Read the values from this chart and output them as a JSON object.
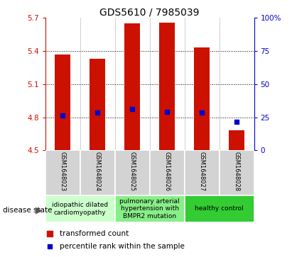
{
  "title": "GDS5610 / 7985039",
  "samples": [
    "GSM1648023",
    "GSM1648024",
    "GSM1648025",
    "GSM1648026",
    "GSM1648027",
    "GSM1648028"
  ],
  "bar_tops": [
    5.37,
    5.33,
    5.65,
    5.66,
    5.43,
    4.68
  ],
  "bar_bottom": 4.5,
  "blue_marker_y": [
    4.82,
    4.84,
    4.875,
    4.85,
    4.84,
    4.76
  ],
  "ylim_left": [
    4.5,
    5.7
  ],
  "ylim_right": [
    0,
    100
  ],
  "yticks_left": [
    4.5,
    4.8,
    5.1,
    5.4,
    5.7
  ],
  "ytick_labels_left": [
    "4.5",
    "4.8",
    "5.1",
    "5.4",
    "5.7"
  ],
  "yticks_right": [
    0,
    25,
    50,
    75,
    100
  ],
  "ytick_labels_right": [
    "0",
    "25",
    "50",
    "75",
    "100%"
  ],
  "bar_color": "#cc1100",
  "marker_color": "#0000cc",
  "axis_color_left": "#cc1100",
  "axis_color_right": "#0000cc",
  "bar_width": 0.45,
  "groups": [
    {
      "label": "idiopathic dilated\ncardiomyopathy",
      "start": 0,
      "end": 2,
      "color": "#ccffcc"
    },
    {
      "label": "pulmonary arterial\nhypertension with\nBMPR2 mutation",
      "start": 2,
      "end": 4,
      "color": "#88ee88"
    },
    {
      "label": "healthy control",
      "start": 4,
      "end": 6,
      "color": "#33cc33"
    }
  ],
  "legend_red_label": "transformed count",
  "legend_blue_label": "percentile rank within the sample",
  "disease_state_label": "disease state",
  "title_fontsize": 10,
  "tick_fontsize": 7.5,
  "sample_fontsize": 6,
  "group_fontsize": 6.5,
  "legend_fontsize": 7.5
}
